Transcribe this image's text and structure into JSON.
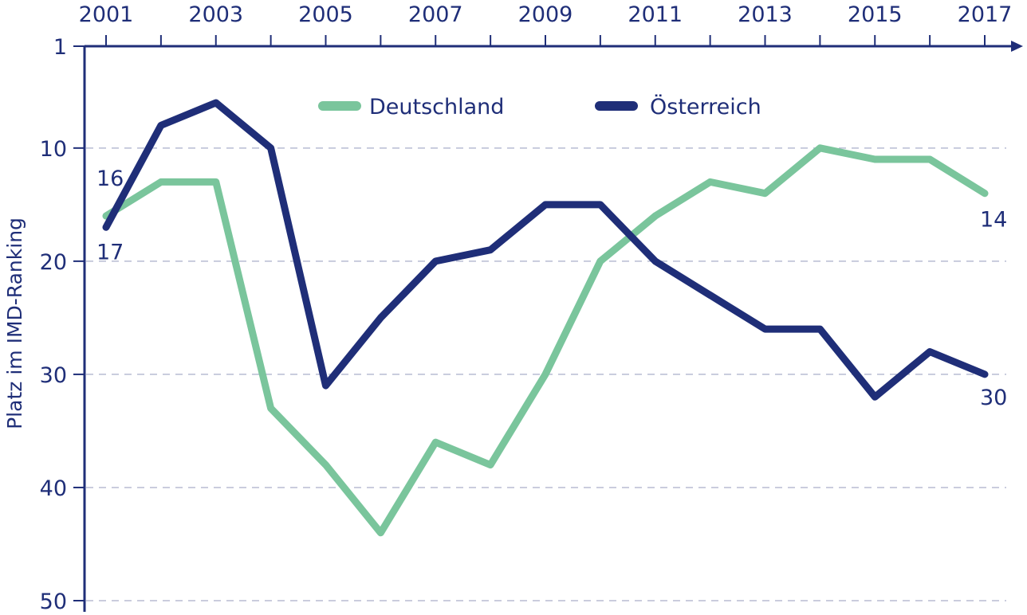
{
  "chart_data": {
    "type": "line",
    "ylabel": "Platz im IMD-Ranking",
    "x": [
      2001,
      2002,
      2003,
      2004,
      2005,
      2006,
      2007,
      2008,
      2009,
      2010,
      2011,
      2012,
      2013,
      2014,
      2015,
      2016,
      2017
    ],
    "x_ticks": [
      "2001",
      "2003",
      "2005",
      "2007",
      "2009",
      "2011",
      "2013",
      "2015",
      "2017"
    ],
    "y_ticks": [
      "1",
      "10",
      "20",
      "30",
      "40",
      "50"
    ],
    "ylim": [
      1,
      50
    ],
    "y_inverted": true,
    "x_axis_position": "top",
    "grid": "horizontal dashed",
    "legend_position": "top-center",
    "series": [
      {
        "name": "Deutschland",
        "color": "#7ac59c",
        "values": [
          16,
          13,
          13,
          33,
          38,
          44,
          36,
          38,
          30,
          20,
          16,
          13,
          14,
          10,
          11,
          11,
          14
        ]
      },
      {
        "name": "Österreich",
        "color": "#1f2e78",
        "values": [
          17,
          8,
          6,
          10,
          31,
          25,
          20,
          19,
          15,
          15,
          20,
          23,
          26,
          26,
          32,
          28,
          30
        ]
      }
    ],
    "annotations": [
      {
        "text": "16",
        "series": 0,
        "x": 2001
      },
      {
        "text": "17",
        "series": 1,
        "x": 2001
      },
      {
        "text": "14",
        "series": 0,
        "x": 2017
      },
      {
        "text": "30",
        "series": 1,
        "x": 2017
      }
    ]
  }
}
